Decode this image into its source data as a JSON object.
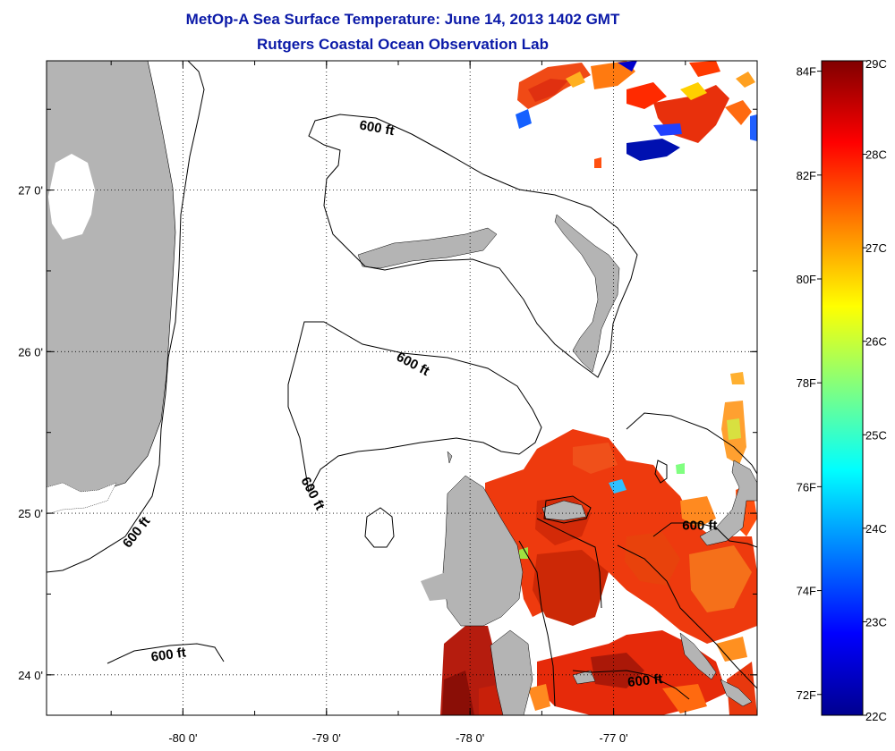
{
  "title": "MetOp-A Sea Surface Temperature:  June 14, 2013 1402 GMT",
  "subtitle": "Rutgers Coastal Ocean Observation Lab",
  "map": {
    "lon_range": [
      -80.95,
      -76.0
    ],
    "lat_range": [
      23.75,
      27.8
    ],
    "lon_ticks": [
      {
        "value": -80,
        "label": "-80 0'"
      },
      {
        "value": -79,
        "label": "-79 0'"
      },
      {
        "value": -78,
        "label": "-78 0'"
      },
      {
        "value": -77,
        "label": "-77 0'"
      }
    ],
    "lat_ticks": [
      {
        "value": 27,
        "label": "27 0'"
      },
      {
        "value": 26,
        "label": "26 0'"
      },
      {
        "value": 25,
        "label": "25 0'"
      },
      {
        "value": 24,
        "label": "24 0'"
      }
    ],
    "grid": "dotted",
    "land_color": "#b4b4b4",
    "contour_labels": [
      {
        "text": "600 ft",
        "lon": -78.65,
        "lat": 27.38,
        "angle": 10
      },
      {
        "text": "600 ft",
        "lon": -78.4,
        "lat": 25.92,
        "angle": 28
      },
      {
        "text": "600 ft",
        "lon": -79.1,
        "lat": 25.12,
        "angle": 62
      },
      {
        "text": "600 ft",
        "lon": -80.32,
        "lat": 24.88,
        "angle": -52
      },
      {
        "text": "600 ft",
        "lon": -76.4,
        "lat": 24.92,
        "angle": 0
      },
      {
        "text": "600 ft",
        "lon": -80.1,
        "lat": 24.12,
        "angle": -8
      },
      {
        "text": "600 ft",
        "lon": -76.78,
        "lat": 23.96,
        "angle": -6
      }
    ]
  },
  "colorbar": {
    "range_c": [
      22,
      29
    ],
    "celsius_ticks": [
      {
        "value": 29,
        "label": "29C"
      },
      {
        "value": 28,
        "label": "28C"
      },
      {
        "value": 27,
        "label": "27C"
      },
      {
        "value": 26,
        "label": "26C"
      },
      {
        "value": 25,
        "label": "25C"
      },
      {
        "value": 24,
        "label": "24C"
      },
      {
        "value": 23,
        "label": "23C"
      },
      {
        "value": 22,
        "label": "22C"
      }
    ],
    "fahrenheit_ticks": [
      {
        "value": 84,
        "label": "84F"
      },
      {
        "value": 82,
        "label": "82F"
      },
      {
        "value": 80,
        "label": "80F"
      },
      {
        "value": 78,
        "label": "78F"
      },
      {
        "value": 76,
        "label": "76F"
      },
      {
        "value": 74,
        "label": "74F"
      },
      {
        "value": 72,
        "label": "72F"
      }
    ],
    "colormap": [
      "#00008f",
      "#0000ff",
      "#0080ff",
      "#00ffff",
      "#80ff80",
      "#ffff00",
      "#ff8000",
      "#ff0000",
      "#800000"
    ]
  }
}
